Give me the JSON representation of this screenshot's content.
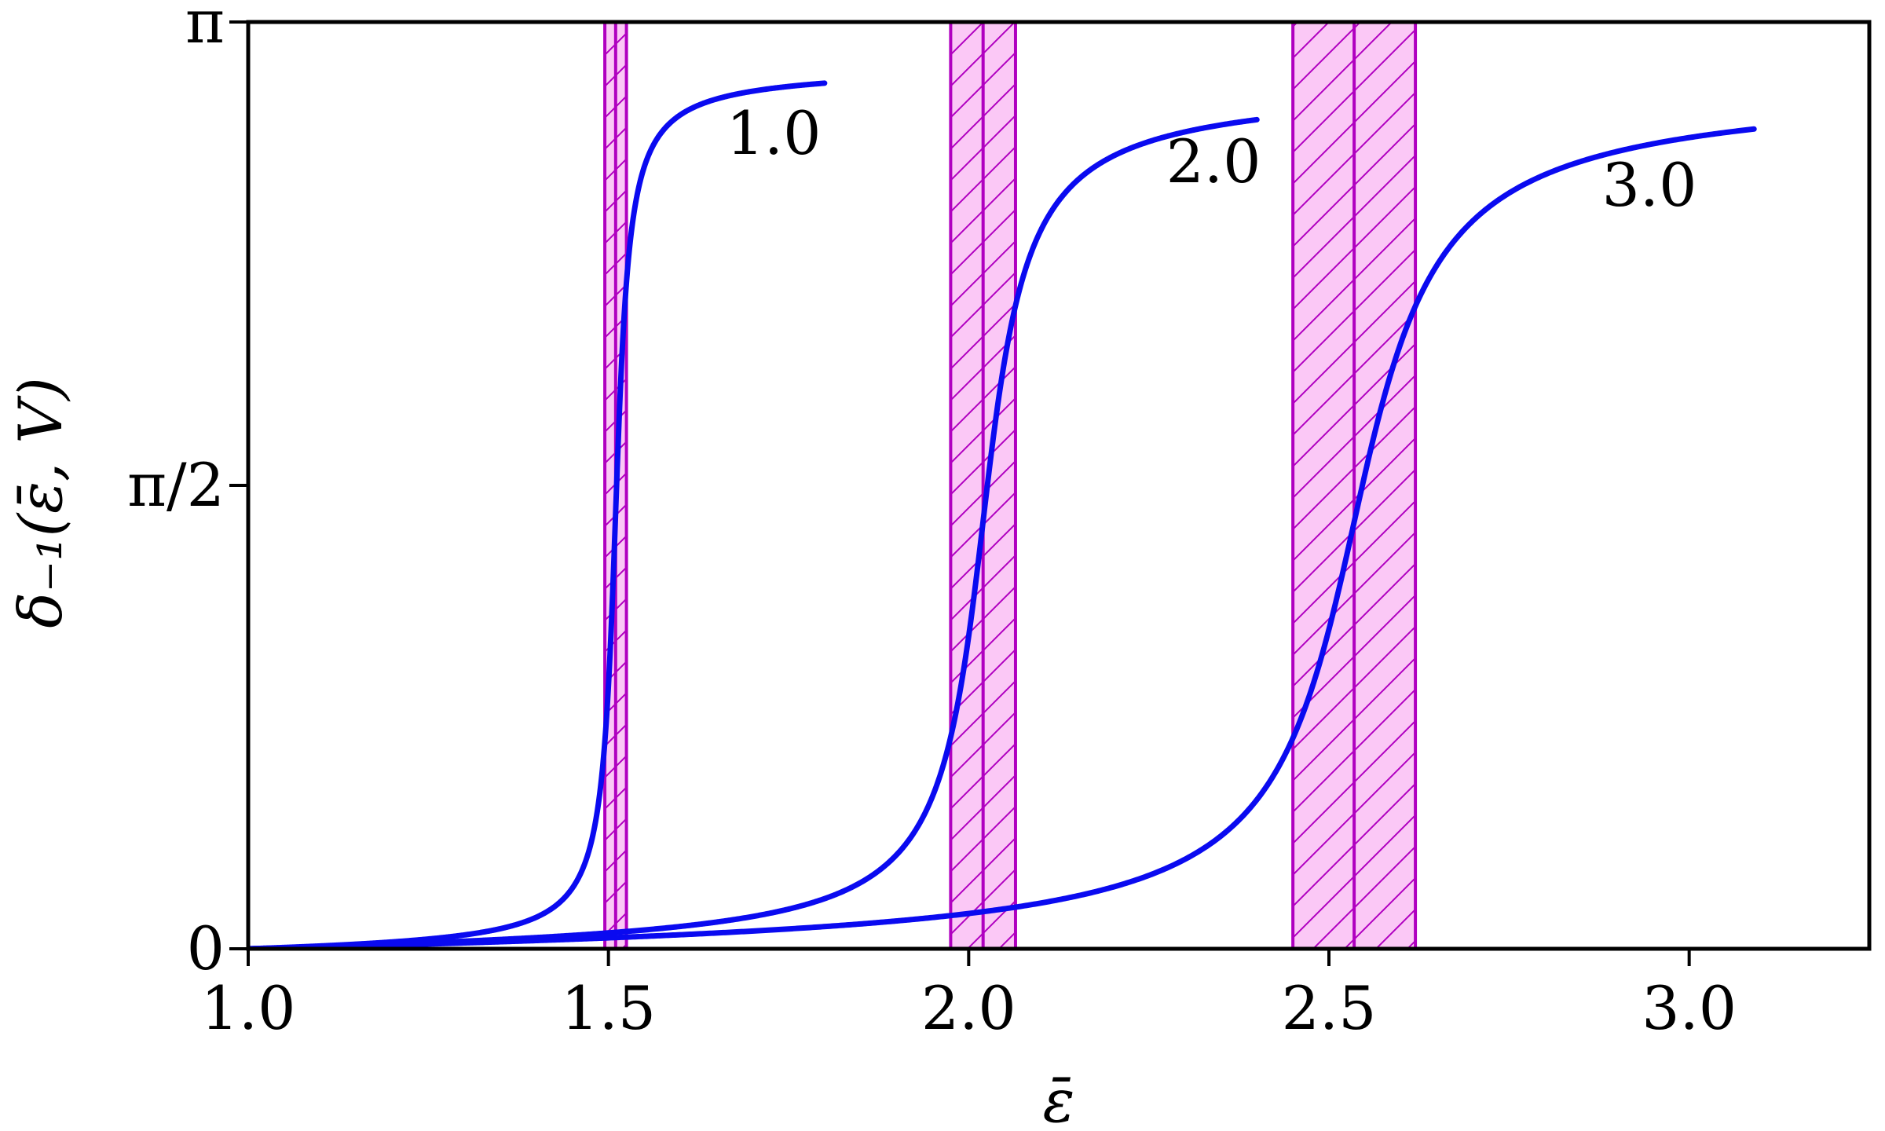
{
  "chart_data": {
    "type": "line",
    "xlabel": "ε̄",
    "ylabel": "δ₋₁(ε̄, V)",
    "xlim": [
      1.0,
      3.25
    ],
    "ylim": [
      0,
      3.14159
    ],
    "x_ticks": [
      {
        "value": 1.0,
        "label": "1.0"
      },
      {
        "value": 1.5,
        "label": "1.5"
      },
      {
        "value": 2.0,
        "label": "2.0"
      },
      {
        "value": 2.5,
        "label": "2.5"
      },
      {
        "value": 3.0,
        "label": "3.0"
      }
    ],
    "y_ticks": [
      {
        "value": 0,
        "label": "0"
      },
      {
        "value": 1.5708,
        "label": "π/2"
      },
      {
        "value": 3.14159,
        "label": "π"
      }
    ],
    "grid": false,
    "line_color": "#0a0af0",
    "band_color": "#b000c0",
    "band_fill": "#fbc8f6",
    "series": [
      {
        "label": "1.0",
        "center": 1.51,
        "width": 0.014,
        "x_end": 1.8,
        "upper": 2.98,
        "band": [
          1.495,
          1.525
        ]
      },
      {
        "label": "2.0",
        "center": 2.02,
        "width": 0.045,
        "x_end": 2.4,
        "upper": 2.92,
        "band": [
          1.975,
          2.065
        ]
      },
      {
        "label": "3.0",
        "center": 2.535,
        "width": 0.085,
        "x_end": 3.09,
        "upper": 2.92,
        "band": [
          2.45,
          2.62
        ]
      }
    ]
  }
}
